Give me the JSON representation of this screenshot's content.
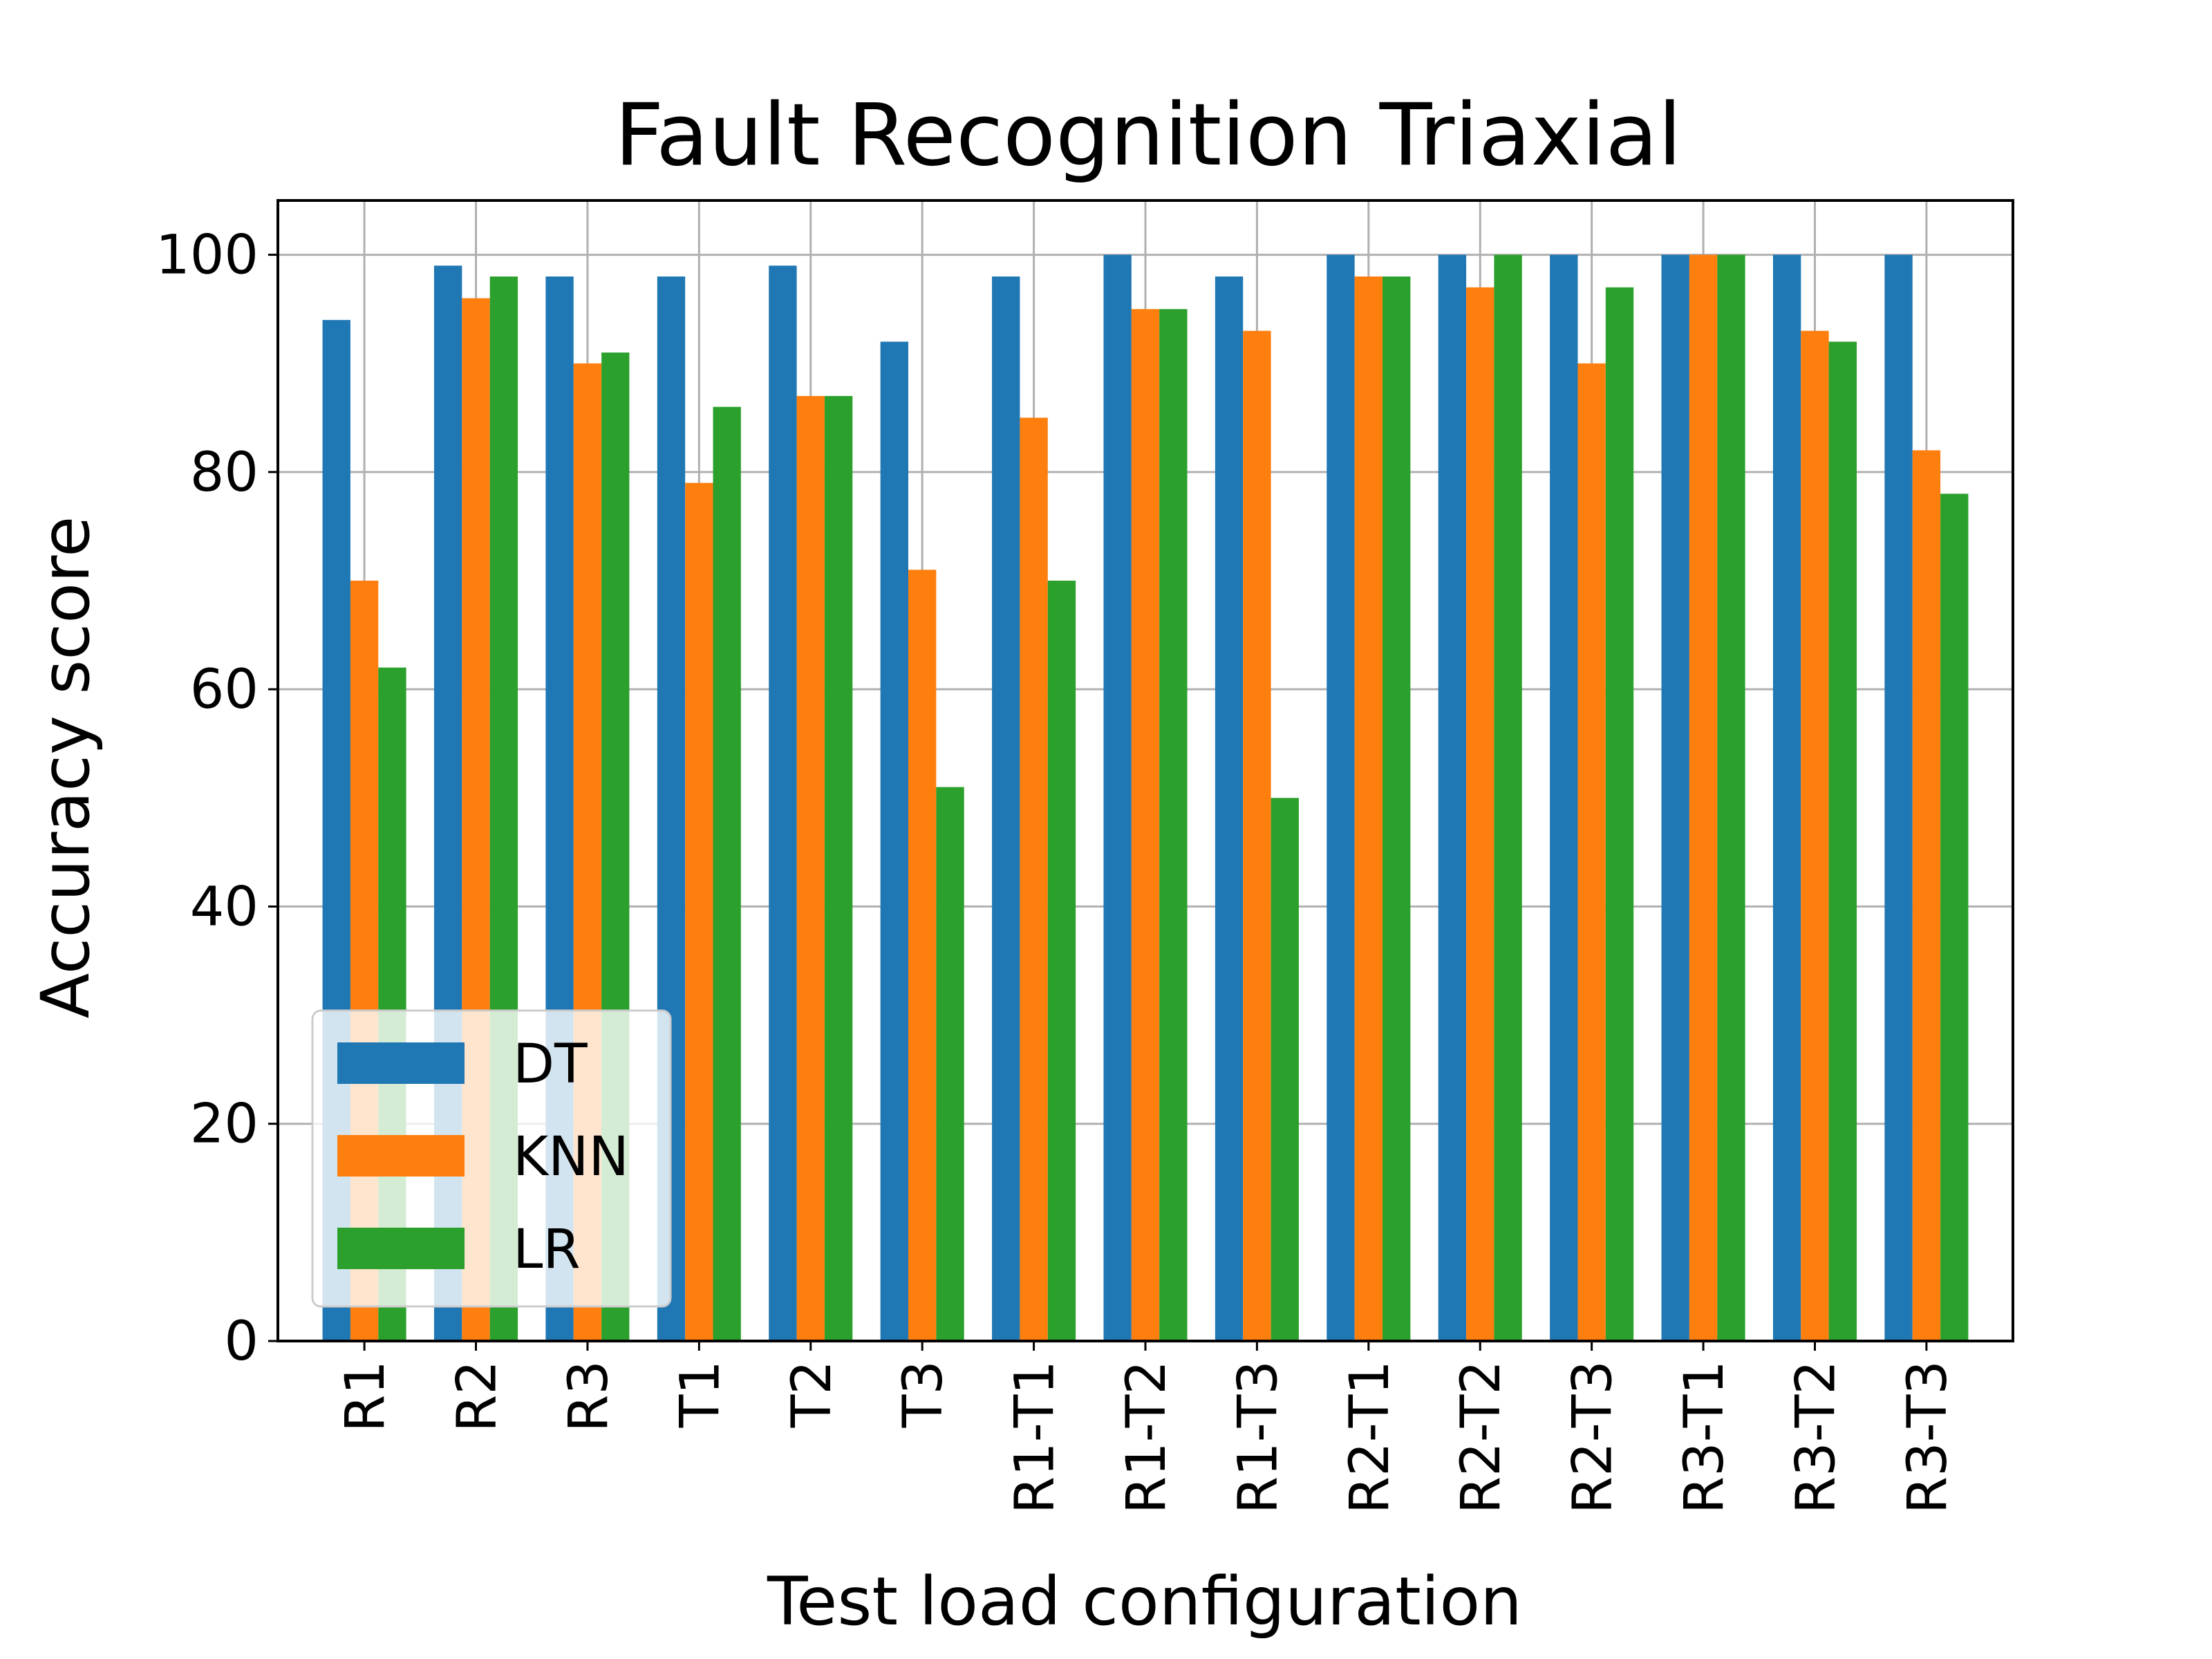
{
  "chart_data": {
    "type": "bar",
    "title": "Fault Recognition Triaxial",
    "xlabel": "Test load configuration",
    "ylabel": "Accuracy score",
    "categories": [
      "R1",
      "R2",
      "R3",
      "T1",
      "T2",
      "T3",
      "R1-T1",
      "R1-T2",
      "R1-T3",
      "R2-T1",
      "R2-T2",
      "R2-T3",
      "R3-T1",
      "R3-T2",
      "R3-T3"
    ],
    "series": [
      {
        "name": "DT",
        "color": "#1f77b4",
        "values": [
          94,
          99,
          98,
          98,
          99,
          92,
          98,
          100,
          98,
          100,
          100,
          100,
          100,
          100,
          100
        ]
      },
      {
        "name": "KNN",
        "color": "#ff7f0e",
        "values": [
          70,
          96,
          90,
          79,
          87,
          71,
          85,
          95,
          93,
          98,
          97,
          90,
          100,
          93,
          82
        ]
      },
      {
        "name": "LR",
        "color": "#2ca02c",
        "values": [
          62,
          98,
          91,
          86,
          87,
          51,
          70,
          95,
          50,
          98,
          100,
          97,
          100,
          92,
          78
        ]
      }
    ],
    "ylim": [
      0,
      105
    ],
    "yticks": [
      0,
      20,
      40,
      60,
      80,
      100
    ],
    "grid": true,
    "legend_position": "lower-left"
  }
}
